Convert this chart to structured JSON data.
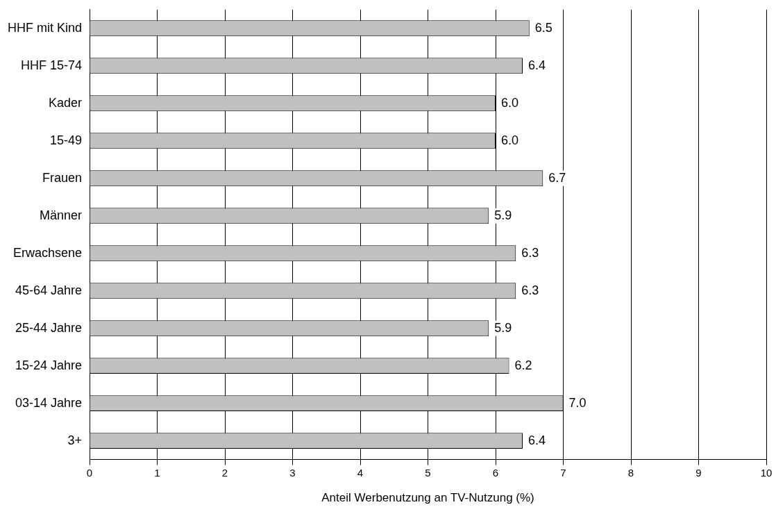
{
  "chart_data": {
    "type": "bar",
    "orientation": "horizontal",
    "xlabel": "Anteil Werbenutzung an TV-Nutzung (%)",
    "categories": [
      "HHF mit Kind",
      "HHF 15-74",
      "Kader",
      "15-49",
      "Frauen",
      "Männer",
      "Erwachsene",
      "45-64 Jahre",
      "25-44 Jahre",
      "15-24 Jahre",
      "03-14 Jahre",
      "3+"
    ],
    "values": [
      6.5,
      6.4,
      6.0,
      6.0,
      6.7,
      5.9,
      6.3,
      6.3,
      5.9,
      6.2,
      7.0,
      6.4
    ],
    "value_labels": [
      "6.5",
      "6.4",
      "6.0",
      "6.0",
      "6.7",
      "5.9",
      "6.3",
      "6.3",
      "5.9",
      "6.2",
      "7.0",
      "6.4"
    ],
    "color": "#c0c0c0",
    "xlim": [
      0,
      10
    ],
    "xticks": [
      0,
      1,
      2,
      3,
      4,
      5,
      6,
      7,
      8,
      9,
      10
    ],
    "grid": "x",
    "legend": false
  }
}
